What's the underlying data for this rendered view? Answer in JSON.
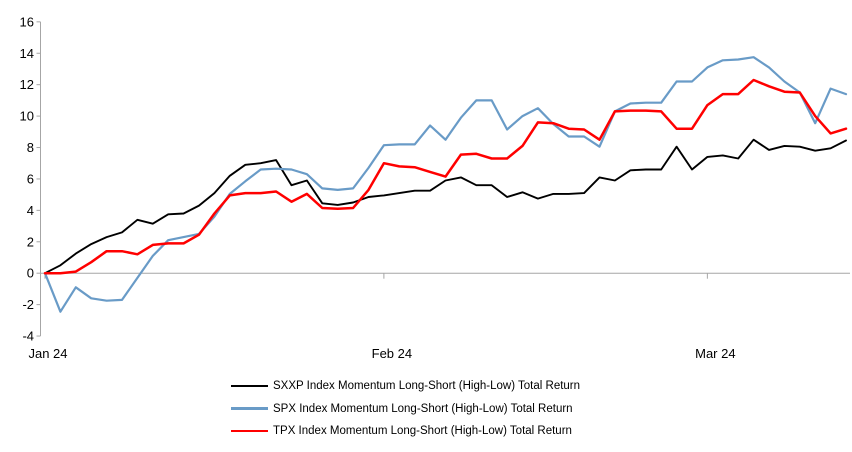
{
  "chart_data": {
    "type": "line",
    "title": "",
    "xlabel": "",
    "ylabel": "",
    "ylim": [
      -4,
      16
    ],
    "y_ticks": [
      -4,
      -2,
      0,
      2,
      4,
      6,
      8,
      10,
      12,
      14,
      16
    ],
    "x_tick_labels": [
      "Jan 24",
      "Feb 24",
      "Mar 24"
    ],
    "x_tick_indices": [
      0,
      22,
      43
    ],
    "n_points": 53,
    "grid": "zero-line-only",
    "legend_position": "bottom",
    "axis_color": "#A6A6A6",
    "series": [
      {
        "name": "SXXP Index Momentum Long-Short (High-Low) Total Return",
        "color": "#000000",
        "values": [
          0.0,
          0.5,
          1.25,
          1.85,
          2.3,
          2.6,
          3.4,
          3.15,
          3.75,
          3.8,
          4.3,
          5.1,
          6.2,
          6.9,
          7.0,
          7.2,
          5.6,
          5.9,
          4.45,
          4.35,
          4.5,
          4.85,
          4.95,
          5.1,
          5.25,
          5.25,
          5.9,
          6.1,
          5.6,
          5.6,
          4.85,
          5.15,
          4.75,
          5.05,
          5.05,
          5.1,
          6.1,
          5.9,
          6.55,
          6.6,
          6.6,
          8.05,
          6.6,
          7.4,
          7.5,
          7.3,
          8.5,
          7.85,
          8.1,
          8.05,
          7.8,
          7.95,
          8.45
        ]
      },
      {
        "name": "SPX Index Momentum Long-Short (High-Low) Total Return",
        "color": "#699BC7",
        "values": [
          0.0,
          -2.45,
          -0.9,
          -1.6,
          -1.75,
          -1.7,
          -0.3,
          1.1,
          2.1,
          2.3,
          2.5,
          3.6,
          5.05,
          5.85,
          6.6,
          6.65,
          6.6,
          6.3,
          5.4,
          5.3,
          5.4,
          6.7,
          8.15,
          8.2,
          8.2,
          9.4,
          8.5,
          9.9,
          11.0,
          11.0,
          9.15,
          10.0,
          10.5,
          9.5,
          8.7,
          8.7,
          8.05,
          10.3,
          10.8,
          10.85,
          10.85,
          12.2,
          12.2,
          13.1,
          13.55,
          13.6,
          13.75,
          13.1,
          12.2,
          11.5,
          9.55,
          11.75,
          11.4
        ]
      },
      {
        "name": "TPX Index Momentum Long-Short (High-Low) Total Return",
        "color": "#FF0000",
        "values": [
          0.0,
          0.0,
          0.1,
          0.7,
          1.4,
          1.4,
          1.2,
          1.8,
          1.9,
          1.9,
          2.45,
          3.8,
          4.95,
          5.1,
          5.1,
          5.2,
          4.55,
          5.05,
          4.15,
          4.1,
          4.15,
          5.3,
          7.0,
          6.8,
          6.75,
          6.45,
          6.15,
          7.55,
          7.6,
          7.3,
          7.3,
          8.1,
          9.6,
          9.55,
          9.2,
          9.15,
          8.5,
          10.3,
          10.35,
          10.35,
          10.3,
          9.2,
          9.2,
          10.7,
          11.4,
          11.4,
          12.3,
          11.9,
          11.55,
          11.5,
          10.0,
          8.9,
          9.2
        ]
      }
    ]
  }
}
